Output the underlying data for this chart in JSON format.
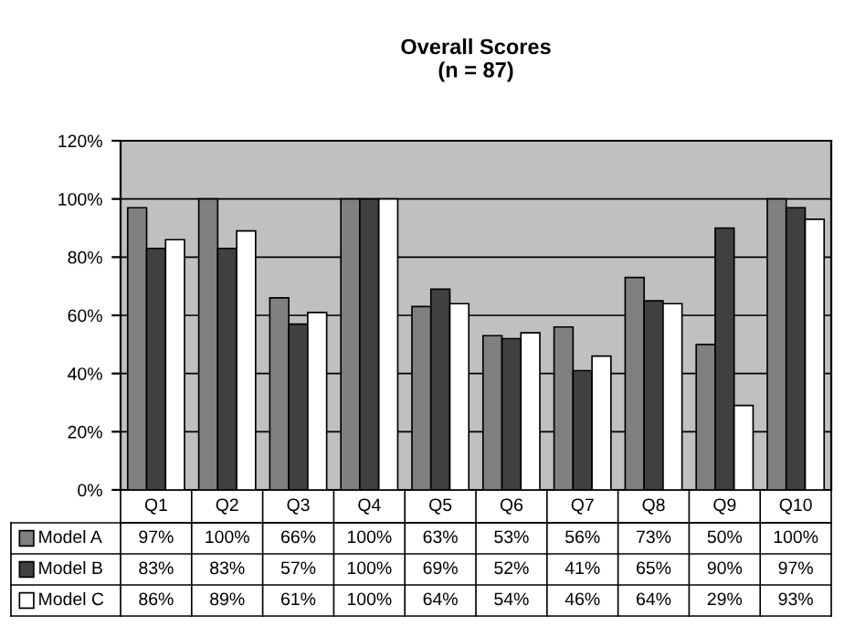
{
  "chart_data": {
    "type": "bar",
    "title": "Overall Scores\n(n = 87)",
    "categories": [
      "Q1",
      "Q2",
      "Q3",
      "Q4",
      "Q5",
      "Q6",
      "Q7",
      "Q8",
      "Q9",
      "Q10"
    ],
    "series": [
      {
        "name": "Model A",
        "color": "#808080",
        "values": [
          97,
          100,
          66,
          100,
          63,
          53,
          56,
          73,
          50,
          100
        ],
        "value_labels": [
          "97%",
          "100%",
          "66%",
          "100%",
          "63%",
          "53%",
          "56%",
          "73%",
          "50%",
          "100%"
        ]
      },
      {
        "name": "Model B",
        "color": "#404040",
        "values": [
          83,
          83,
          57,
          100,
          69,
          52,
          41,
          65,
          90,
          97
        ],
        "value_labels": [
          "83%",
          "83%",
          "57%",
          "100%",
          "69%",
          "52%",
          "41%",
          "65%",
          "90%",
          "97%"
        ]
      },
      {
        "name": "Model C",
        "color": "#ffffff",
        "values": [
          86,
          89,
          61,
          100,
          64,
          54,
          46,
          64,
          29,
          93
        ],
        "value_labels": [
          "86%",
          "89%",
          "61%",
          "100%",
          "64%",
          "54%",
          "46%",
          "64%",
          "29%",
          "93%"
        ]
      }
    ],
    "ylim": [
      0,
      120
    ],
    "yticks": [
      {
        "value": 0,
        "label": "0%"
      },
      {
        "value": 20,
        "label": "20%"
      },
      {
        "value": 40,
        "label": "40%"
      },
      {
        "value": 60,
        "label": "60%"
      },
      {
        "value": 80,
        "label": "80%"
      },
      {
        "value": 100,
        "label": "100%"
      },
      {
        "value": 120,
        "label": "120%"
      }
    ],
    "grid": "y",
    "legend": "bottom"
  }
}
